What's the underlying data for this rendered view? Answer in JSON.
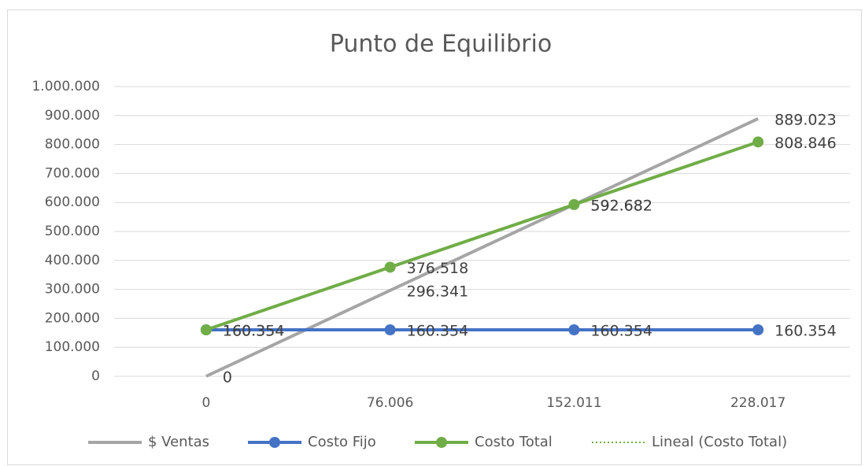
{
  "chart_data": {
    "type": "line",
    "title": "Punto de Equilibrio",
    "categories": [
      "0",
      "76.006",
      "152.011",
      "228.017"
    ],
    "series": [
      {
        "name": "$ Ventas",
        "color": "#a5a5a5",
        "values": [
          0,
          296341,
          592682,
          889023
        ],
        "value_labels": [
          "0",
          "296.341",
          "592.682",
          "889.023"
        ],
        "markers": false
      },
      {
        "name": "Costo Fijo",
        "color": "#4472c4",
        "values": [
          160354,
          160354,
          160354,
          160354
        ],
        "value_labels": [
          "160.354",
          "160.354",
          "160.354",
          "160.354"
        ],
        "markers": true
      },
      {
        "name": "Costo Total",
        "color": "#70ad47",
        "values": [
          160354,
          376518,
          592682,
          808846
        ],
        "value_labels": [
          "160.354",
          "376.518",
          "592.682",
          "808.846"
        ],
        "markers": true
      },
      {
        "name": "Lineal (Costo Total)",
        "color": "#70ad47",
        "values": [
          160354,
          376518,
          592682,
          808846
        ],
        "dotted": true,
        "markers": false
      }
    ],
    "ylim": [
      0,
      1000000
    ],
    "yticks": [
      0,
      {
        "value": 100000,
        "label": "100.000"
      },
      {
        "value": 200000,
        "label": "200.000"
      },
      {
        "value": 300000,
        "label": "300.000"
      },
      {
        "value": 400000,
        "label": "400.000"
      },
      {
        "value": 500000,
        "label": "500.000"
      },
      {
        "value": 600000,
        "label": "600.000"
      },
      {
        "value": 700000,
        "label": "700.000"
      },
      {
        "value": 800000,
        "label": "800.000"
      },
      {
        "value": 900000,
        "label": "900.000"
      },
      {
        "value": 1000000,
        "label": "1.000.000"
      }
    ],
    "grid": true,
    "legend": "bottom"
  }
}
